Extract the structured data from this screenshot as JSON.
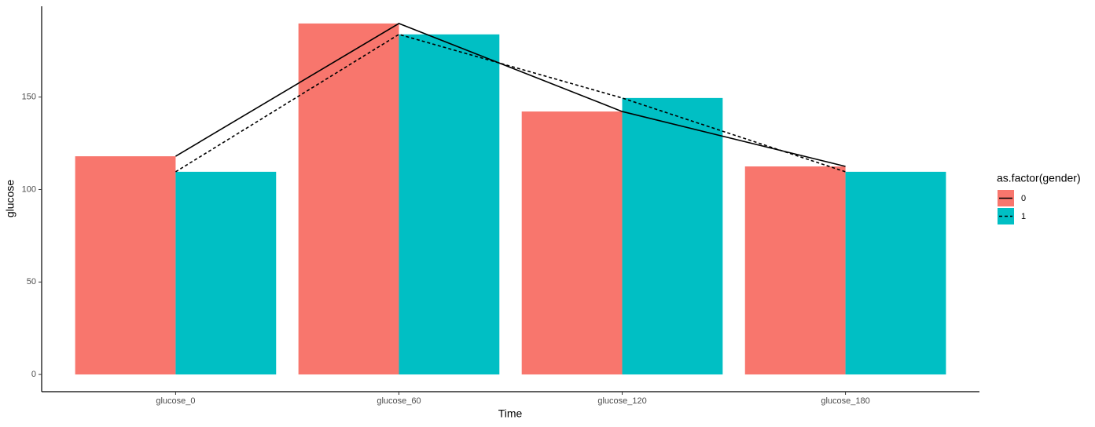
{
  "chart_data": {
    "type": "bar",
    "x_label": "Time",
    "y_label": "glucose",
    "categories": [
      "glucose_0",
      "glucose_60",
      "glucose_120",
      "glucose_180"
    ],
    "legend_title": "as.factor(gender)",
    "legend_position": "right",
    "line_color": "#000000",
    "series": [
      {
        "name": "0",
        "color": "#F8766D",
        "linestyle": "solid",
        "values": [
          118.0,
          189.8,
          142.2,
          112.5
        ]
      },
      {
        "name": "1",
        "color": "#00BFC4",
        "linestyle": "dashed",
        "values": [
          109.6,
          183.9,
          149.5,
          109.6
        ]
      }
    ],
    "ylim": [
      -9.3,
      199.1
    ],
    "yticks": [
      0,
      50,
      100,
      150
    ],
    "grid": false
  }
}
